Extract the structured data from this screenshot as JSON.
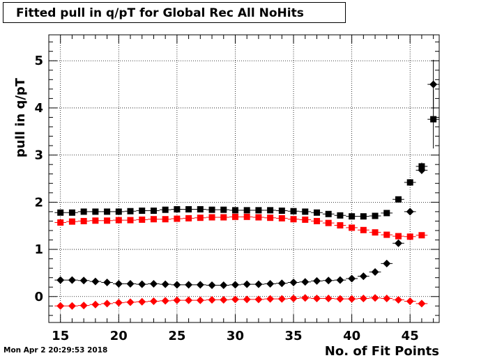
{
  "title": "Fitted pull in q/pT for Global Rec All NoHits",
  "timestamp": "Mon Apr  2 20:29:53 2018",
  "chart_data": {
    "type": "scatter",
    "xlabel": "No. of Fit Points",
    "ylabel": "pull in q/pT",
    "xlim": [
      14,
      47.5
    ],
    "ylim": [
      -0.55,
      5.55
    ],
    "xticks": [
      15,
      20,
      25,
      30,
      35,
      40,
      45
    ],
    "yticks": [
      0,
      1,
      2,
      3,
      4,
      5
    ],
    "grid": true,
    "series": [
      {
        "marker": "square",
        "color": "#000000",
        "points": [
          [
            15,
            1.78
          ],
          [
            16,
            1.78
          ],
          [
            17,
            1.8
          ],
          [
            18,
            1.8
          ],
          [
            19,
            1.8
          ],
          [
            20,
            1.8
          ],
          [
            21,
            1.81
          ],
          [
            22,
            1.82
          ],
          [
            23,
            1.82
          ],
          [
            24,
            1.84
          ],
          [
            25,
            1.85
          ],
          [
            26,
            1.85
          ],
          [
            27,
            1.85
          ],
          [
            28,
            1.84
          ],
          [
            29,
            1.84
          ],
          [
            30,
            1.83
          ],
          [
            31,
            1.83
          ],
          [
            32,
            1.83
          ],
          [
            33,
            1.83
          ],
          [
            34,
            1.82
          ],
          [
            35,
            1.81
          ],
          [
            36,
            1.8
          ],
          [
            37,
            1.78
          ],
          [
            38,
            1.75
          ],
          [
            39,
            1.72
          ],
          [
            40,
            1.7
          ],
          [
            41,
            1.7
          ],
          [
            42,
            1.71
          ],
          [
            43,
            1.77
          ],
          [
            44,
            2.06
          ],
          [
            45,
            2.42
          ],
          [
            46,
            2.76
          ],
          [
            47,
            3.76
          ]
        ],
        "err": [
          0,
          0,
          0,
          0,
          0,
          0,
          0,
          0,
          0,
          0,
          0,
          0,
          0,
          0,
          0,
          0,
          0,
          0,
          0,
          0,
          0,
          0,
          0,
          0,
          0,
          0,
          0,
          0,
          0,
          0.03,
          0.05,
          0.08,
          0.62
        ]
      },
      {
        "marker": "square",
        "color": "#ff0000",
        "points": [
          [
            15,
            1.57
          ],
          [
            16,
            1.59
          ],
          [
            17,
            1.6
          ],
          [
            18,
            1.61
          ],
          [
            19,
            1.61
          ],
          [
            20,
            1.62
          ],
          [
            21,
            1.62
          ],
          [
            22,
            1.63
          ],
          [
            23,
            1.64
          ],
          [
            24,
            1.64
          ],
          [
            25,
            1.65
          ],
          [
            26,
            1.66
          ],
          [
            27,
            1.67
          ],
          [
            28,
            1.68
          ],
          [
            29,
            1.68
          ],
          [
            30,
            1.69
          ],
          [
            31,
            1.69
          ],
          [
            32,
            1.68
          ],
          [
            33,
            1.67
          ],
          [
            34,
            1.66
          ],
          [
            35,
            1.64
          ],
          [
            36,
            1.63
          ],
          [
            37,
            1.6
          ],
          [
            38,
            1.56
          ],
          [
            39,
            1.51
          ],
          [
            40,
            1.46
          ],
          [
            41,
            1.41
          ],
          [
            42,
            1.36
          ],
          [
            43,
            1.31
          ],
          [
            44,
            1.28
          ],
          [
            45,
            1.27
          ],
          [
            46,
            1.3
          ]
        ],
        "err": [
          0,
          0,
          0,
          0,
          0,
          0,
          0,
          0,
          0,
          0,
          0,
          0,
          0,
          0,
          0,
          0,
          0,
          0,
          0,
          0,
          0,
          0,
          0,
          0,
          0,
          0,
          0,
          0,
          0,
          0,
          0,
          0
        ]
      },
      {
        "marker": "diamond",
        "color": "#000000",
        "points": [
          [
            15,
            0.35
          ],
          [
            16,
            0.35
          ],
          [
            17,
            0.34
          ],
          [
            18,
            0.32
          ],
          [
            19,
            0.3
          ],
          [
            20,
            0.27
          ],
          [
            21,
            0.27
          ],
          [
            22,
            0.26
          ],
          [
            23,
            0.27
          ],
          [
            24,
            0.26
          ],
          [
            25,
            0.25
          ],
          [
            26,
            0.25
          ],
          [
            27,
            0.25
          ],
          [
            28,
            0.24
          ],
          [
            29,
            0.24
          ],
          [
            30,
            0.25
          ],
          [
            31,
            0.26
          ],
          [
            32,
            0.26
          ],
          [
            33,
            0.27
          ],
          [
            34,
            0.28
          ],
          [
            35,
            0.3
          ],
          [
            36,
            0.31
          ],
          [
            37,
            0.33
          ],
          [
            38,
            0.34
          ],
          [
            39,
            0.35
          ],
          [
            40,
            0.38
          ],
          [
            41,
            0.43
          ],
          [
            42,
            0.52
          ],
          [
            43,
            0.7
          ],
          [
            44,
            1.13
          ],
          [
            45,
            1.8
          ],
          [
            46,
            2.68
          ],
          [
            47,
            4.5
          ]
        ],
        "err": [
          0,
          0,
          0,
          0,
          0,
          0,
          0,
          0,
          0,
          0,
          0,
          0,
          0,
          0,
          0,
          0,
          0,
          0,
          0,
          0,
          0,
          0,
          0,
          0,
          0,
          0,
          0,
          0,
          0,
          0.03,
          0.05,
          0.08,
          0.52
        ]
      },
      {
        "marker": "diamond",
        "color": "#ff0000",
        "points": [
          [
            15,
            -0.2
          ],
          [
            16,
            -0.2
          ],
          [
            17,
            -0.19
          ],
          [
            18,
            -0.17
          ],
          [
            19,
            -0.15
          ],
          [
            20,
            -0.13
          ],
          [
            21,
            -0.12
          ],
          [
            22,
            -0.11
          ],
          [
            23,
            -0.1
          ],
          [
            24,
            -0.09
          ],
          [
            25,
            -0.08
          ],
          [
            26,
            -0.08
          ],
          [
            27,
            -0.08
          ],
          [
            28,
            -0.07
          ],
          [
            29,
            -0.07
          ],
          [
            30,
            -0.06
          ],
          [
            31,
            -0.06
          ],
          [
            32,
            -0.06
          ],
          [
            33,
            -0.05
          ],
          [
            34,
            -0.05
          ],
          [
            35,
            -0.04
          ],
          [
            36,
            -0.03
          ],
          [
            37,
            -0.04
          ],
          [
            38,
            -0.04
          ],
          [
            39,
            -0.05
          ],
          [
            40,
            -0.05
          ],
          [
            41,
            -0.04
          ],
          [
            42,
            -0.03
          ],
          [
            43,
            -0.04
          ],
          [
            44,
            -0.07
          ],
          [
            45,
            -0.1
          ],
          [
            46,
            -0.15
          ]
        ],
        "err": [
          0,
          0,
          0,
          0,
          0,
          0,
          0,
          0,
          0,
          0,
          0,
          0,
          0,
          0,
          0,
          0,
          0,
          0,
          0,
          0,
          0,
          0,
          0,
          0,
          0,
          0,
          0,
          0,
          0,
          0,
          0,
          0
        ]
      }
    ]
  }
}
